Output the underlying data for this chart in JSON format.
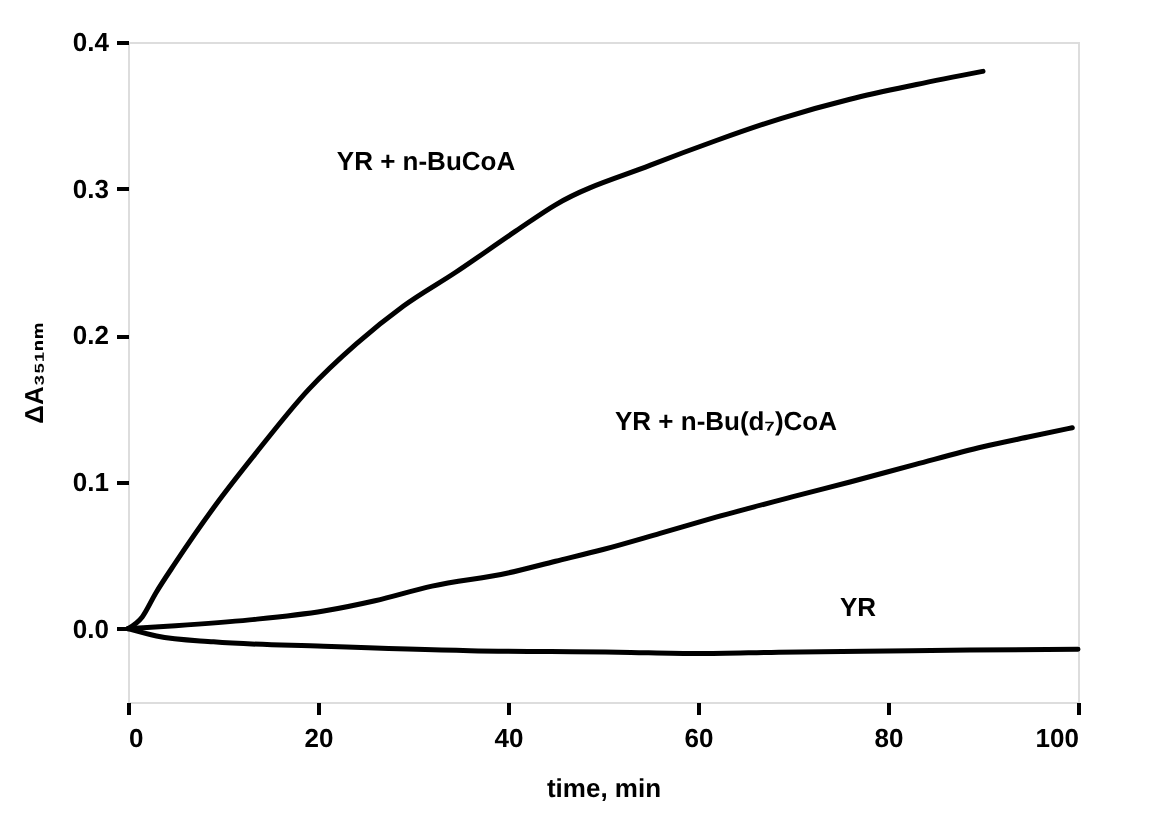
{
  "chart_data": {
    "type": "line",
    "xlabel": "time, min",
    "ylabel": "ΔA₃₅₁ₙₘ",
    "xlim": [
      0,
      100
    ],
    "ylim": [
      -0.05,
      0.4
    ],
    "xticks": [
      0,
      20,
      40,
      60,
      80,
      100
    ],
    "yticks": [
      {
        "value": 0,
        "label": "0.0"
      },
      {
        "value": 0.1,
        "label": "0.1"
      },
      {
        "value": 0.2,
        "label": "0.2"
      },
      {
        "value": 0.3,
        "label": "0.3"
      },
      {
        "value": 0.4,
        "label": "0.4"
      }
    ],
    "grid": false,
    "marker": "none",
    "line_style": "solid",
    "series": [
      {
        "color": "#000000",
        "x": [
          0,
          1.5,
          2.9,
          5,
          9.3,
          13.5,
          19,
          24,
          29,
          34.5,
          40.8,
          45,
          55,
          62,
          68.8,
          76,
          83,
          90
        ],
        "values": [
          0,
          0.008,
          0.024,
          0.045,
          0.085,
          0.12,
          0.163,
          0.194,
          0.22,
          0.243,
          0.271,
          0.289,
          0.316,
          0.333,
          0.348,
          0.361,
          0.371,
          0.38
        ]
      },
      {
        "color": "#000000",
        "x": [
          0,
          5,
          12.8,
          20.6,
          26,
          32,
          40,
          45,
          50,
          56,
          61.9,
          70,
          76,
          82.9,
          90,
          95,
          99.4
        ],
        "values": [
          0,
          0.002,
          0.006,
          0.012,
          0.019,
          0.029,
          0.038,
          0.046,
          0.054,
          0.065,
          0.076,
          0.09,
          0.1,
          0.112,
          0.124,
          0.131,
          0.137
        ]
      },
      {
        "color": "#000000",
        "x": [
          0,
          3,
          9,
          20.6,
          36,
          51.6,
          60,
          68.5,
          82.5,
          100
        ],
        "values": [
          0,
          -0.005,
          -0.009,
          -0.012,
          -0.015,
          -0.016,
          -0.017,
          -0.016,
          -0.015,
          -0.014
        ]
      }
    ],
    "annotations": [
      "YR + n-BuCoA",
      "YR + n-Bu(d₇)CoA",
      "YR"
    ]
  }
}
